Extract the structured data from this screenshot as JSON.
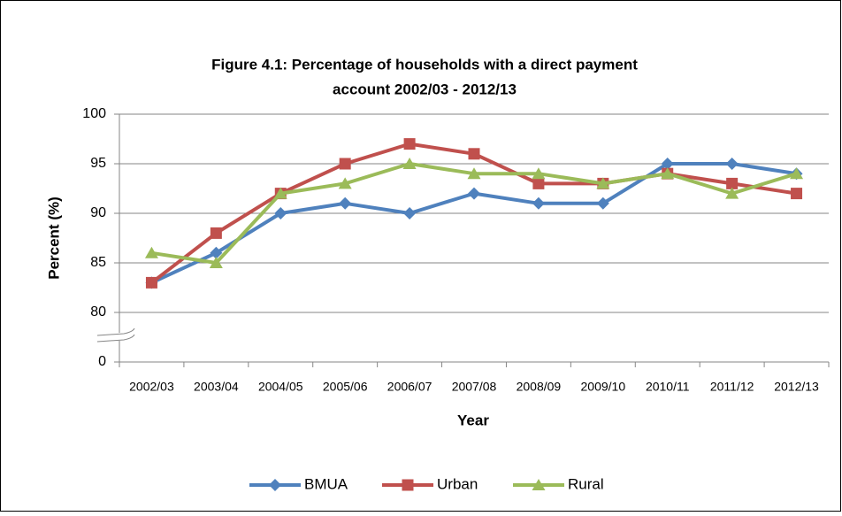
{
  "chart_data": {
    "type": "line",
    "title": [
      "Figure 4.1: Percentage of households with a direct payment",
      "account 2002/03 - 2012/13"
    ],
    "x_label": "Year",
    "y_label": "Percent (%)",
    "categories": [
      "2002/03",
      "2003/04",
      "2004/05",
      "2005/06",
      "2006/07",
      "2007/08",
      "2008/09",
      "2009/10",
      "2010/11",
      "2011/12",
      "2012/13"
    ],
    "series": [
      {
        "name": "BMUA",
        "color": "#4f81bd",
        "marker": "diamond",
        "values": [
          83,
          86,
          90,
          91,
          90,
          92,
          91,
          91,
          95,
          95,
          94
        ]
      },
      {
        "name": "Urban",
        "color": "#c0504d",
        "marker": "square",
        "values": [
          83,
          88,
          92,
          95,
          97,
          96,
          93,
          93,
          94,
          93,
          92
        ]
      },
      {
        "name": "Rural",
        "color": "#9bbb59",
        "marker": "triangle",
        "values": [
          86,
          85,
          92,
          93,
          95,
          94,
          94,
          93,
          94,
          92,
          94
        ]
      }
    ],
    "ylim": [
      0,
      100
    ],
    "y_break": [
      0,
      80
    ],
    "yticks": [
      0,
      80,
      85,
      90,
      95,
      100
    ],
    "grid": true,
    "legend": "bottom"
  }
}
